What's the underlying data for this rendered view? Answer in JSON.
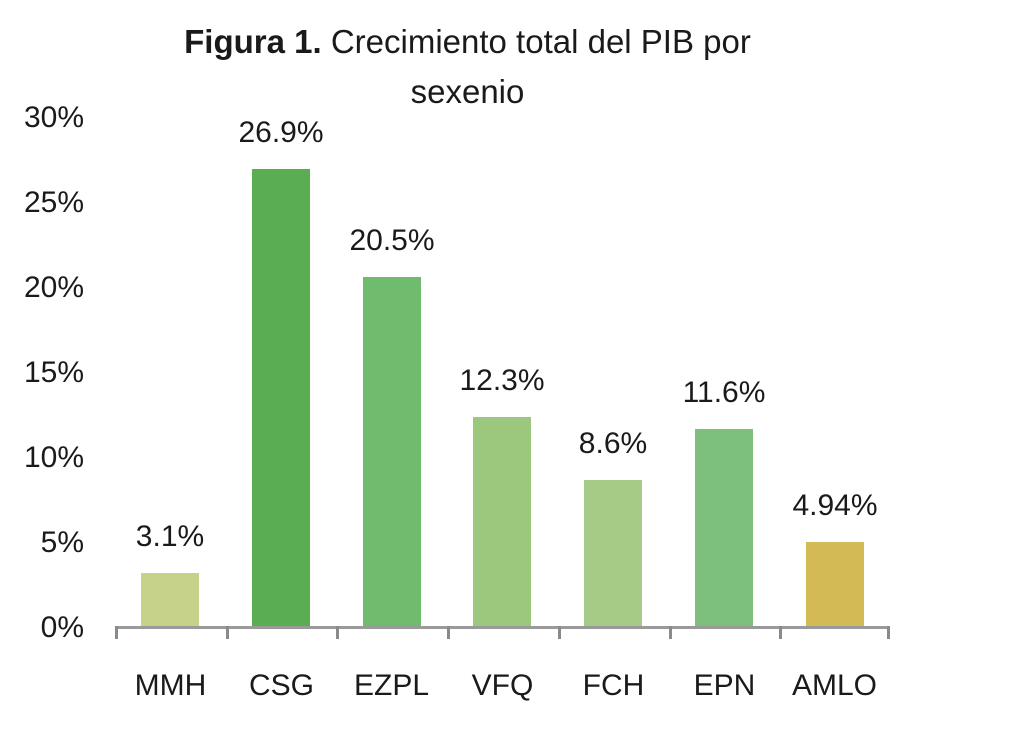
{
  "title": {
    "prefix_bold": "Figura 1.",
    "line1_rest": " Crecimiento total del PIB por",
    "line2": "sexenio"
  },
  "chart_data": {
    "type": "bar",
    "title": "Figura 1. Crecimiento total del PIB por sexenio",
    "categories": [
      "MMH",
      "CSG",
      "EZPL",
      "VFQ",
      "FCH",
      "EPN",
      "AMLO"
    ],
    "values": [
      3.1,
      26.9,
      20.5,
      12.3,
      8.6,
      11.6,
      4.94
    ],
    "value_labels": [
      "3.1%",
      "26.9%",
      "20.5%",
      "12.3%",
      "8.6%",
      "11.6%",
      "4.94%"
    ],
    "bar_colors": [
      "#c6d189",
      "#5bad52",
      "#6fbc6e",
      "#9cc87e",
      "#a5cb86",
      "#7dc07b",
      "#d4ba55"
    ],
    "xlabel": "",
    "ylabel": "",
    "ylim": [
      0,
      30
    ],
    "yticks": [
      0,
      5,
      10,
      15,
      20,
      25,
      30
    ],
    "ytick_labels": [
      "0%",
      "5%",
      "10%",
      "15%",
      "20%",
      "25%",
      "30%"
    ],
    "grid": false,
    "legend": false,
    "axis_color": "#9a9a9a",
    "tick_color": "#8a8a8a",
    "text_color": "#1a1a1a",
    "background_color": "#ffffff"
  }
}
